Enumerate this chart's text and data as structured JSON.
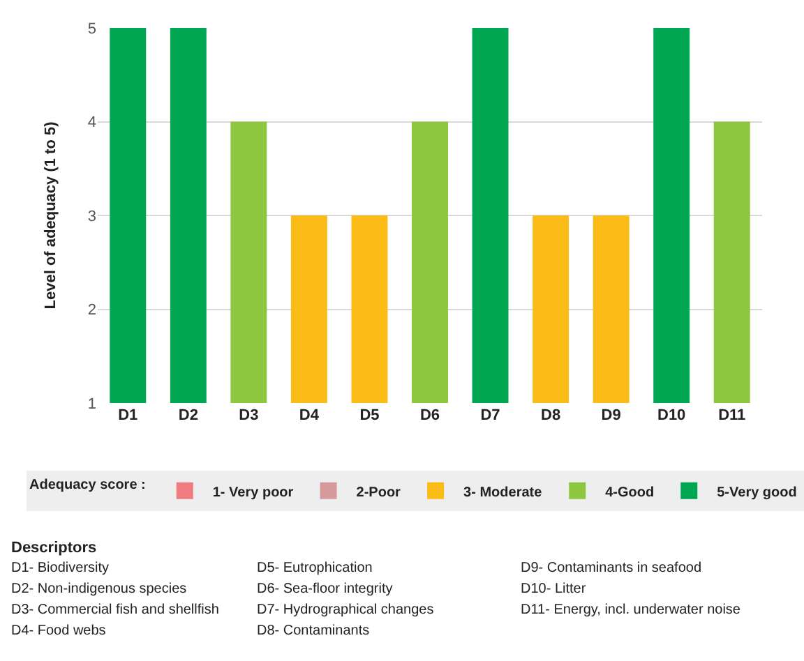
{
  "chart_data": {
    "type": "bar",
    "ylabel": "Level of adequacy (1 to 5)",
    "categories": [
      "D1",
      "D2",
      "D3",
      "D4",
      "D5",
      "D6",
      "D7",
      "D8",
      "D9",
      "D10",
      "D11"
    ],
    "series": [
      {
        "name": "1- Very poor",
        "color": "#f07c82",
        "values": [
          null,
          null,
          null,
          null,
          null,
          null,
          null,
          null,
          null,
          null,
          null
        ]
      },
      {
        "name": "2-Poor",
        "color": "#d49a9c",
        "values": [
          null,
          null,
          null,
          null,
          null,
          null,
          null,
          null,
          null,
          null,
          null
        ]
      },
      {
        "name": "3- Moderate",
        "color": "#fbbc18",
        "values": [
          null,
          null,
          null,
          3,
          3,
          null,
          null,
          3,
          3,
          null,
          null
        ]
      },
      {
        "name": "4-Good",
        "color": "#8dc63f",
        "values": [
          null,
          null,
          4,
          null,
          null,
          4,
          null,
          null,
          null,
          null,
          4
        ]
      },
      {
        "name": "5-Very good",
        "color": "#00a651",
        "values": [
          5,
          5,
          null,
          null,
          null,
          null,
          5,
          null,
          null,
          5,
          null
        ]
      }
    ],
    "ylim": [
      1,
      5
    ],
    "yticks": [
      1,
      2,
      3,
      4,
      5
    ],
    "grid": "y",
    "legend": "bottom",
    "legend_title": "Adequacy score :",
    "annotations": [
      "Descriptors",
      "D1- Biodiversity",
      "D2- Non-indigenous species",
      "D3- Commercial fish and shellfish",
      "D4- Food webs",
      "D5- Eutrophication",
      "D6- Sea-floor integrity",
      "D7- Hydrographical changes",
      "D8- Contaminants",
      "D9- Contaminants in seafood",
      "D10- Litter",
      "D11- Energy, incl. underwater noise"
    ]
  }
}
